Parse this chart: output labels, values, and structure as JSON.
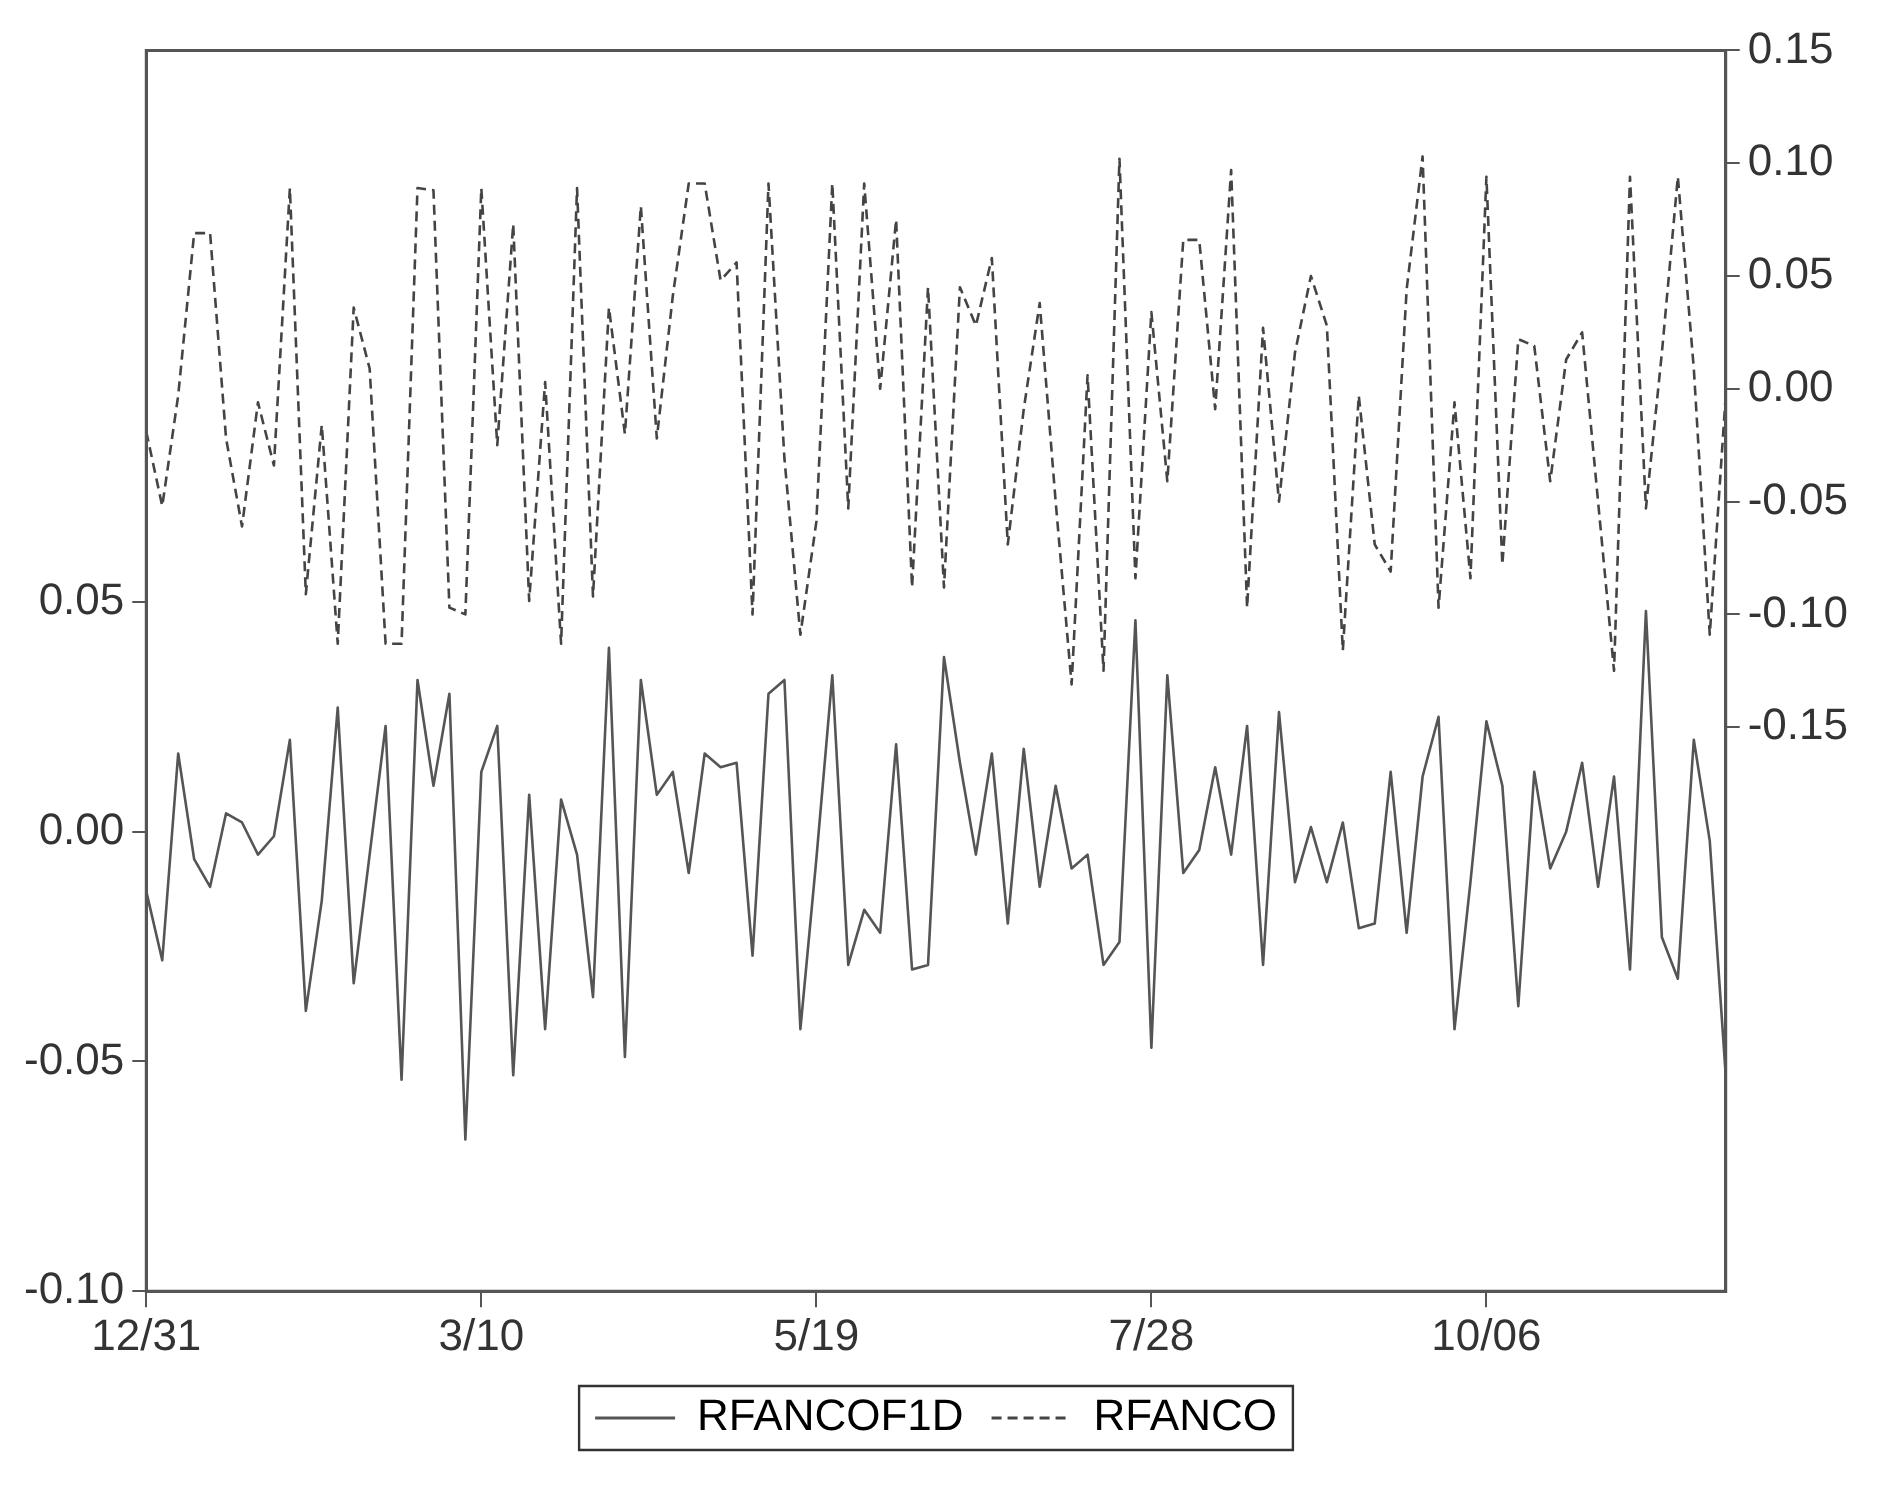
{
  "chart_data": {
    "type": "line",
    "categories": [
      "12/31",
      null,
      null,
      null,
      null,
      null,
      null,
      null,
      null,
      null,
      null,
      null,
      null,
      null,
      null,
      null,
      null,
      null,
      null,
      null,
      null,
      "3/10",
      null,
      null,
      null,
      null,
      null,
      null,
      null,
      null,
      null,
      null,
      null,
      null,
      null,
      null,
      null,
      null,
      null,
      null,
      null,
      null,
      "5/19",
      null,
      null,
      null,
      null,
      null,
      null,
      null,
      null,
      null,
      null,
      null,
      null,
      null,
      null,
      null,
      null,
      null,
      null,
      null,
      null,
      "7/28",
      null,
      null,
      null,
      null,
      null,
      null,
      null,
      null,
      null,
      null,
      null,
      null,
      null,
      null,
      null,
      null,
      null,
      null,
      null,
      null,
      "10/06",
      null,
      null,
      null,
      null,
      null,
      null,
      null,
      null,
      null,
      null,
      null,
      null,
      null,
      null,
      null
    ],
    "series": [
      {
        "name": "RFANCOF1D",
        "color": "#555555",
        "line_style": "solid",
        "axis": "y",
        "values": [
          -0.013,
          -0.028,
          0.017,
          -0.006,
          -0.012,
          0.004,
          0.002,
          -0.005,
          -0.001,
          0.02,
          -0.039,
          -0.015,
          0.027,
          -0.033,
          -0.005,
          0.023,
          -0.054,
          0.033,
          0.01,
          0.03,
          -0.067,
          0.013,
          0.023,
          -0.053,
          0.008,
          -0.043,
          0.007,
          -0.005,
          -0.036,
          0.04,
          -0.049,
          0.033,
          0.008,
          0.013,
          -0.009,
          0.017,
          0.014,
          0.015,
          -0.027,
          0.03,
          0.033,
          -0.043,
          -0.006,
          0.034,
          -0.029,
          -0.017,
          -0.022,
          0.019,
          -0.03,
          -0.029,
          0.038,
          0.015,
          -0.005,
          0.017,
          -0.02,
          0.018,
          -0.012,
          0.01,
          -0.008,
          -0.005,
          -0.029,
          -0.024,
          0.046,
          -0.047,
          0.034,
          -0.009,
          -0.004,
          0.014,
          -0.005,
          0.023,
          -0.029,
          0.026,
          -0.011,
          0.001,
          -0.011,
          0.002,
          -0.021,
          -0.02,
          0.013,
          -0.022,
          0.012,
          0.025,
          -0.043,
          -0.011,
          0.024,
          0.01,
          -0.038,
          0.013,
          -0.008,
          0.0,
          0.015,
          -0.012,
          0.012,
          -0.03,
          0.048,
          -0.023,
          -0.032,
          0.02,
          -0.002,
          -0.053
        ]
      },
      {
        "name": "RFANCO",
        "color": "#444444",
        "line_style": "dashed",
        "axis": "y2",
        "values": [
          -0.019,
          -0.052,
          -0.003,
          0.069,
          0.069,
          -0.022,
          -0.061,
          -0.006,
          -0.034,
          0.089,
          -0.091,
          -0.016,
          -0.113,
          0.036,
          0.009,
          -0.113,
          -0.113,
          0.089,
          0.088,
          -0.097,
          -0.1,
          0.089,
          -0.025,
          0.073,
          -0.094,
          0.003,
          -0.113,
          0.089,
          -0.092,
          0.036,
          -0.02,
          0.081,
          -0.022,
          0.041,
          0.091,
          0.091,
          0.048,
          0.056,
          -0.1,
          0.091,
          -0.031,
          -0.109,
          -0.059,
          0.091,
          -0.053,
          0.091,
          0.0,
          0.075,
          -0.088,
          0.045,
          -0.088,
          0.045,
          0.028,
          0.058,
          -0.069,
          -0.009,
          0.038,
          -0.05,
          -0.131,
          0.006,
          -0.125,
          0.102,
          -0.084,
          0.034,
          -0.041,
          0.066,
          0.066,
          -0.009,
          0.097,
          -0.097,
          0.027,
          -0.05,
          0.016,
          0.05,
          0.028,
          -0.116,
          -0.003,
          -0.069,
          -0.081,
          0.044,
          0.103,
          -0.097,
          -0.006,
          -0.084,
          0.094,
          -0.078,
          0.022,
          0.019,
          -0.041,
          0.013,
          0.025,
          -0.05,
          -0.125,
          0.094,
          -0.053,
          0.016,
          0.094,
          0.009,
          -0.109,
          -0.003
        ]
      }
    ],
    "ylim": [
      -0.1,
      0.17
    ],
    "yticks": [
      {
        "value": -0.1,
        "label": "-0.10"
      },
      {
        "value": -0.05,
        "label": "-0.05"
      },
      {
        "value": 0.0,
        "label": "0.00"
      },
      {
        "value": 0.05,
        "label": "0.05"
      }
    ],
    "y2lim": [
      -0.4,
      0.15
    ],
    "y2ticks": [
      {
        "value": -0.15,
        "label": "-0.15"
      },
      {
        "value": -0.1,
        "label": "-0.10"
      },
      {
        "value": -0.05,
        "label": "-0.05"
      },
      {
        "value": 0.0,
        "label": "0.00"
      },
      {
        "value": 0.05,
        "label": "0.05"
      },
      {
        "value": 0.1,
        "label": "0.10"
      },
      {
        "value": 0.15,
        "label": "0.15"
      }
    ],
    "grid": false,
    "legend": "bottom",
    "marker": "none"
  }
}
